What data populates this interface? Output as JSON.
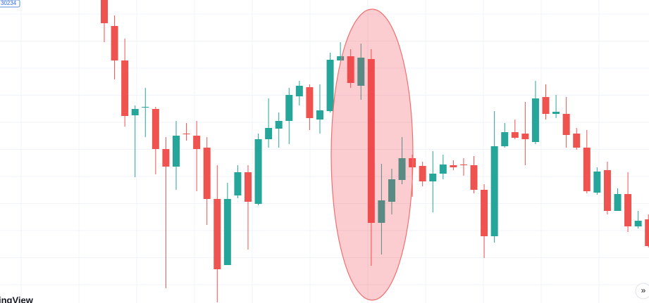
{
  "chart_data": {
    "type": "candlestick",
    "price_label": "30234",
    "logo": "ingView",
    "scroll_button": "»",
    "ylim": [
      0,
      431
    ],
    "grid": true,
    "up_color": "#26a69a",
    "down_color": "#ef5350",
    "open": [
      431,
      394,
      345,
      267,
      278,
      276,
      219,
      194,
      241,
      238,
      221,
      148,
      54,
      153,
      186,
      141,
      233,
      248,
      259,
      294,
      307,
      261,
      273,
      345,
      351,
      309,
      347,
      114,
      144,
      175,
      206,
      195,
      173,
      184,
      196,
      197,
      196,
      161,
      95,
      223,
      243,
      241,
      229,
      293,
      269,
      269,
      241,
      221,
      157,
      189,
      131,
      155,
      109,
      119
    ],
    "high": [
      431,
      409,
      376,
      281,
      306,
      279,
      236,
      259,
      256,
      259,
      236,
      196,
      171,
      196,
      196,
      241,
      291,
      271,
      306,
      316,
      311,
      311,
      356,
      371,
      361,
      369,
      361,
      198,
      191,
      236,
      211,
      201,
      216,
      211,
      203,
      206,
      209,
      169,
      273,
      256,
      261,
      286,
      316,
      311,
      296,
      293,
      249,
      246,
      193,
      201,
      163,
      186,
      131,
      126
    ],
    "low": [
      371,
      318,
      251,
      179,
      236,
      183,
      21,
      161,
      231,
      159,
      111,
      1,
      54,
      149,
      76,
      139,
      221,
      221,
      226,
      281,
      246,
      241,
      271,
      346,
      306,
      289,
      53,
      69,
      126,
      169,
      151,
      166,
      129,
      176,
      189,
      181,
      156,
      64,
      86,
      221,
      233,
      196,
      226,
      261,
      263,
      221,
      218,
      156,
      154,
      126,
      131,
      101,
      106,
      79
    ],
    "close": [
      398,
      345,
      266,
      276,
      279,
      219,
      194,
      238,
      240,
      219,
      148,
      48,
      148,
      186,
      144,
      233,
      249,
      259,
      296,
      309,
      263,
      274,
      346,
      351,
      313,
      349,
      114,
      146,
      176,
      206,
      193,
      173,
      184,
      197,
      193,
      196,
      161,
      95,
      223,
      243,
      235,
      233,
      291,
      269,
      272,
      239,
      221,
      159,
      187,
      131,
      155,
      109,
      117,
      81
    ]
  }
}
